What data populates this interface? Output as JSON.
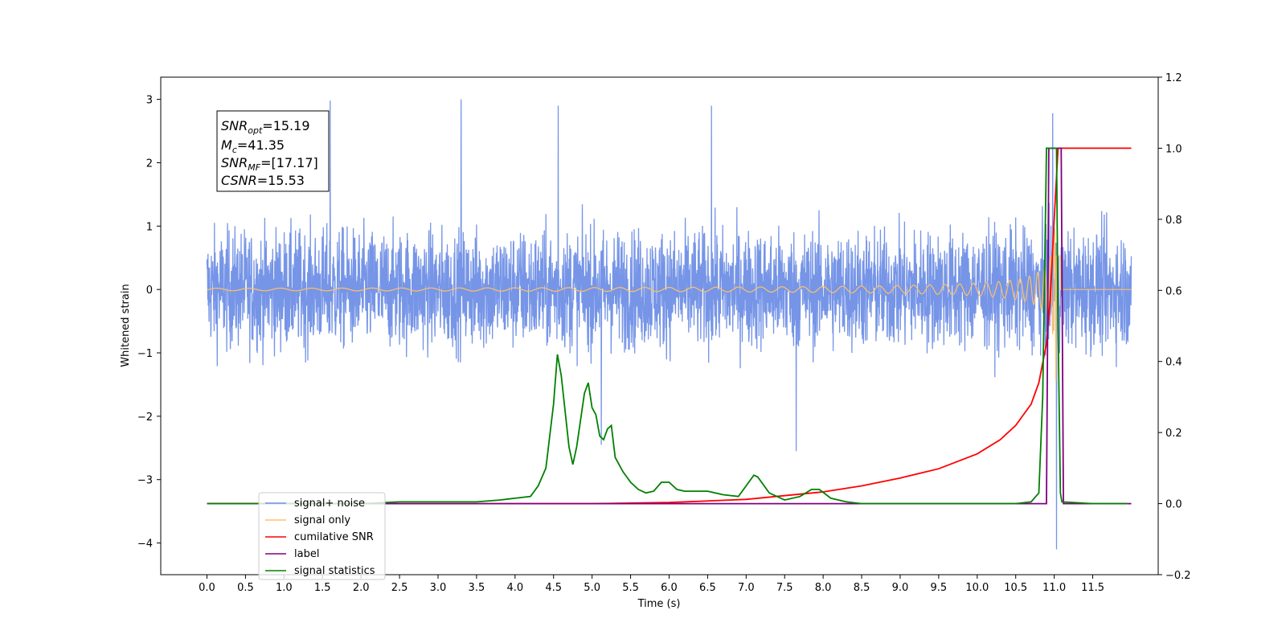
{
  "chart_data": {
    "type": "line",
    "xlabel": "Time (s)",
    "ylabel": "Whitened strain",
    "xlim": [
      -0.6,
      12.35
    ],
    "ylim": [
      -4.5,
      3.35
    ],
    "y2lim": [
      -0.2,
      1.2
    ],
    "x_ticks": [
      "0.0",
      "0.5",
      "1.0",
      "1.5",
      "2.0",
      "2.5",
      "3.0",
      "3.5",
      "4.0",
      "4.5",
      "5.0",
      "5.5",
      "6.0",
      "6.5",
      "7.0",
      "7.5",
      "8.0",
      "8.5",
      "9.0",
      "9.5",
      "10.0",
      "10.5",
      "11.0",
      "11.5"
    ],
    "y_ticks": [
      "3",
      "2",
      "1",
      "0",
      "−1",
      "−2",
      "−3",
      "−4"
    ],
    "y2_ticks": [
      "1.2",
      "1.0",
      "0.8",
      "0.6",
      "0.4",
      "0.2",
      "0.0",
      "−0.2"
    ],
    "annotation": {
      "lines": [
        {
          "base": "SNR",
          "sub": "opt",
          "value": "=15.19"
        },
        {
          "base": "M",
          "sub": "c",
          "value": "=41.35"
        },
        {
          "base": "SNR",
          "sub": "MF",
          "value": "=[17.17]"
        },
        {
          "base": "CSNR",
          "sub": "",
          "value": "=15.53"
        }
      ]
    },
    "legend": {
      "placement": "lower-left",
      "items": [
        {
          "label": "signal+ noise",
          "color": "#6f8fe6"
        },
        {
          "label": "signal only",
          "color": "#ffc066"
        },
        {
          "label": "cumilative SNR",
          "color": "#ff0000"
        },
        {
          "label": "label",
          "color": "#800080"
        },
        {
          "label": "signal statistics",
          "color": "#008000"
        }
      ]
    },
    "series": [
      {
        "name": "signal+ noise",
        "axis": "left",
        "color": "#6f8fe6",
        "kind": "noise",
        "start": 0.0,
        "end": 12.0,
        "amplitude": 1.2,
        "spikes": [
          [
            1.6,
            2.98
          ],
          [
            3.3,
            3.0
          ],
          [
            4.56,
            2.9
          ],
          [
            5.12,
            -2.45
          ],
          [
            6.55,
            2.9
          ],
          [
            7.65,
            -2.55
          ],
          [
            11.03,
            3.0
          ],
          [
            11.03,
            -4.1
          ],
          [
            10.98,
            2.78
          ]
        ]
      },
      {
        "name": "signal only",
        "axis": "left",
        "color": "#ffc066",
        "kind": "chirp",
        "start": 0.0,
        "end": 12.0,
        "merger": 11.03
      },
      {
        "name": "cumilative SNR",
        "axis": "right",
        "color": "#ff0000",
        "x": [
          0.0,
          3.0,
          5.0,
          6.0,
          7.0,
          8.0,
          8.5,
          9.0,
          9.5,
          10.0,
          10.3,
          10.5,
          10.7,
          10.8,
          10.9,
          10.95,
          11.0,
          11.05,
          11.5,
          12.0
        ],
        "y": [
          0.0,
          0.0,
          0.0,
          0.003,
          0.012,
          0.033,
          0.05,
          0.072,
          0.098,
          0.14,
          0.18,
          0.22,
          0.28,
          0.34,
          0.45,
          0.58,
          0.8,
          1.0,
          1.0,
          1.0
        ]
      },
      {
        "name": "label",
        "axis": "right",
        "color": "#800080",
        "x": [
          0.0,
          10.9,
          10.93,
          11.09,
          11.12,
          12.0
        ],
        "y": [
          0.0,
          0.0,
          1.0,
          1.0,
          0.0,
          0.0
        ]
      },
      {
        "name": "signal statistics",
        "axis": "right",
        "color": "#008000",
        "x": [
          0.0,
          2.0,
          2.5,
          3.0,
          3.5,
          3.8,
          4.0,
          4.2,
          4.3,
          4.4,
          4.5,
          4.55,
          4.6,
          4.7,
          4.75,
          4.8,
          4.9,
          4.95,
          5.0,
          5.05,
          5.1,
          5.15,
          5.2,
          5.25,
          5.3,
          5.4,
          5.5,
          5.6,
          5.7,
          5.8,
          5.9,
          6.0,
          6.1,
          6.2,
          6.3,
          6.5,
          6.7,
          6.9,
          7.0,
          7.1,
          7.15,
          7.3,
          7.5,
          7.7,
          7.85,
          7.95,
          8.1,
          8.3,
          8.5,
          9.0,
          10.0,
          10.5,
          10.7,
          10.8,
          10.85,
          10.9,
          10.95,
          11.0,
          11.03,
          11.05,
          11.08,
          11.1,
          11.5,
          11.95
        ],
        "y": [
          0.0,
          0.0,
          0.005,
          0.005,
          0.005,
          0.01,
          0.015,
          0.02,
          0.05,
          0.1,
          0.28,
          0.42,
          0.36,
          0.16,
          0.11,
          0.16,
          0.31,
          0.34,
          0.27,
          0.25,
          0.19,
          0.18,
          0.21,
          0.22,
          0.13,
          0.09,
          0.06,
          0.04,
          0.03,
          0.035,
          0.06,
          0.06,
          0.04,
          0.035,
          0.035,
          0.035,
          0.025,
          0.02,
          0.05,
          0.08,
          0.075,
          0.03,
          0.01,
          0.02,
          0.04,
          0.04,
          0.015,
          0.005,
          0.0,
          0.0,
          0.0,
          0.0,
          0.005,
          0.03,
          0.3,
          1.0,
          1.0,
          1.0,
          1.0,
          0.5,
          0.03,
          0.005,
          0.0,
          0.0
        ]
      }
    ]
  }
}
